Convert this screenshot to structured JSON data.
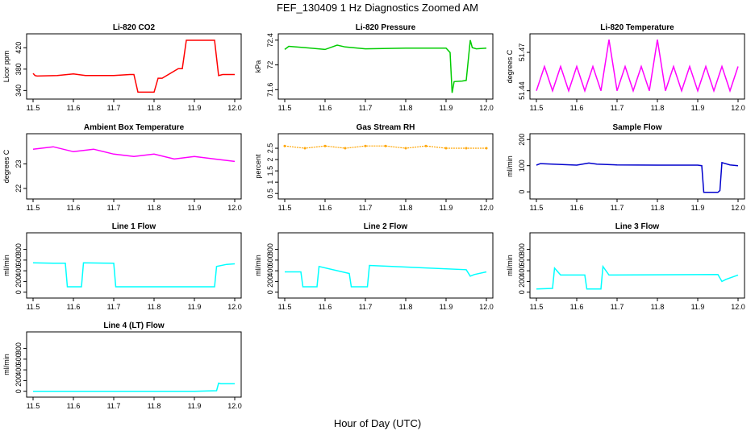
{
  "title": "FEF_130409 1 Hz Diagnostics Zoomed AM",
  "xlabel": "Hour of Day (UTC)",
  "chart_data": [
    {
      "type": "line",
      "title": "Li-820 CO2",
      "ylabel": "Licor ppm",
      "color": "#ff0000",
      "xlim": [
        11.5,
        12.0
      ],
      "ylim": [
        330,
        440
      ],
      "xticks": [
        "11.5",
        "11.6",
        "11.7",
        "11.8",
        "11.9",
        "12.0"
      ],
      "yticks": [
        340,
        380,
        420
      ],
      "series": [
        {
          "x": [
            11.5,
            11.505,
            11.51,
            11.56,
            11.6,
            11.63,
            11.7,
            11.74,
            11.75,
            11.76,
            11.8,
            11.81,
            11.82,
            11.86,
            11.87,
            11.88,
            11.95,
            11.96,
            11.97,
            12.0
          ],
          "y": [
            372,
            368,
            367,
            368,
            371,
            368,
            368,
            370,
            370,
            337,
            337,
            363,
            363,
            381,
            381,
            434,
            434,
            368,
            370,
            370
          ]
        }
      ]
    },
    {
      "type": "line",
      "title": "Li-820 Pressure",
      "ylabel": "kPa",
      "color": "#00cc00",
      "xlim": [
        11.5,
        12.0
      ],
      "ylim": [
        71.5,
        72.45
      ],
      "xticks": [
        "11.5",
        "11.6",
        "11.7",
        "11.8",
        "11.9",
        "12.0"
      ],
      "yticks": [
        71.6,
        72.0,
        72.4
      ],
      "series": [
        {
          "x": [
            11.5,
            11.51,
            11.55,
            11.6,
            11.63,
            11.65,
            11.7,
            11.8,
            11.9,
            11.91,
            11.915,
            11.92,
            11.94,
            11.95,
            11.96,
            11.965,
            11.975,
            12.0
          ],
          "y": [
            72.25,
            72.3,
            72.28,
            72.25,
            72.32,
            72.29,
            72.26,
            72.27,
            72.27,
            72.2,
            71.55,
            71.73,
            71.74,
            71.75,
            72.4,
            72.28,
            72.26,
            72.27
          ]
        }
      ]
    },
    {
      "type": "line",
      "title": "Li-820 Temperature",
      "ylabel": "degrees C",
      "color": "#ff00ff",
      "xlim": [
        11.5,
        12.0
      ],
      "ylim": [
        51.436,
        51.482
      ],
      "xticks": [
        "11.5",
        "11.6",
        "11.7",
        "11.8",
        "11.9",
        "12.0"
      ],
      "yticks": [
        51.44,
        51.47
      ],
      "series": [
        {
          "x": [
            11.5,
            11.52,
            11.54,
            11.56,
            11.58,
            11.6,
            11.62,
            11.64,
            11.66,
            11.68,
            11.7,
            11.72,
            11.74,
            11.76,
            11.78,
            11.8,
            11.82,
            11.84,
            11.86,
            11.88,
            11.9,
            11.92,
            11.94,
            11.96,
            11.98,
            12.0
          ],
          "y": [
            51.44,
            51.459,
            51.44,
            51.459,
            51.44,
            51.459,
            51.44,
            51.459,
            51.44,
            51.48,
            51.44,
            51.459,
            51.44,
            51.459,
            51.44,
            51.48,
            51.44,
            51.459,
            51.44,
            51.459,
            51.44,
            51.459,
            51.44,
            51.459,
            51.44,
            51.459
          ]
        }
      ]
    },
    {
      "type": "line",
      "title": "Ambient Box Temperature",
      "ylabel": "degrees C",
      "color": "#ff00ff",
      "xlim": [
        11.5,
        12.0
      ],
      "ylim": [
        21.7,
        24.1
      ],
      "xticks": [
        "11.5",
        "11.6",
        "11.7",
        "11.8",
        "11.9",
        "12.0"
      ],
      "yticks": [
        22.0,
        23.0
      ],
      "series": [
        {
          "x": [
            11.5,
            11.55,
            11.6,
            11.65,
            11.7,
            11.75,
            11.8,
            11.85,
            11.9,
            11.95,
            12.0
          ],
          "y": [
            23.6,
            23.7,
            23.5,
            23.6,
            23.4,
            23.3,
            23.4,
            23.2,
            23.3,
            23.2,
            23.1
          ]
        }
      ]
    },
    {
      "type": "scatter",
      "title": "Gas Stream RH",
      "ylabel": "percent",
      "color": "#ffa500",
      "xlim": [
        11.5,
        12.0
      ],
      "ylim": [
        0.4,
        3.0
      ],
      "xticks": [
        "11.5",
        "11.6",
        "11.7",
        "11.8",
        "11.9",
        "12.0"
      ],
      "yticks": [
        0.5,
        1.0,
        1.5,
        2.0,
        2.5
      ],
      "series": [
        {
          "x": [
            11.5,
            11.55,
            11.6,
            11.65,
            11.7,
            11.75,
            11.8,
            11.85,
            11.9,
            11.95,
            12.0
          ],
          "y": [
            2.6,
            2.5,
            2.6,
            2.5,
            2.6,
            2.6,
            2.5,
            2.6,
            2.5,
            2.5,
            2.5
          ]
        }
      ]
    },
    {
      "type": "line",
      "title": "Sample Flow",
      "ylabel": "ml/min",
      "color": "#0000cc",
      "xlim": [
        11.5,
        12.0
      ],
      "ylim": [
        -15,
        210
      ],
      "xticks": [
        "11.5",
        "11.6",
        "11.7",
        "11.8",
        "11.9",
        "12.0"
      ],
      "yticks": [
        0,
        100,
        200
      ],
      "series": [
        {
          "x": [
            11.5,
            11.51,
            11.6,
            11.63,
            11.65,
            11.7,
            11.8,
            11.9,
            11.91,
            11.915,
            11.95,
            11.955,
            11.96,
            11.98,
            12.0
          ],
          "y": [
            102,
            108,
            102,
            110,
            106,
            103,
            102,
            102,
            100,
            -2,
            -2,
            5,
            112,
            103,
            100
          ]
        }
      ]
    },
    {
      "type": "line",
      "title": "Line 1 Flow",
      "ylabel": "ml/min",
      "color": "#00ffff",
      "xlim": [
        11.5,
        12.0
      ],
      "ylim": [
        -50,
        1050
      ],
      "xticks": [
        "11.5",
        "11.6",
        "11.7",
        "11.8",
        "11.9",
        "12.0"
      ],
      "yticks": [
        0,
        200,
        400,
        600,
        800
      ],
      "series": [
        {
          "x": [
            11.5,
            11.55,
            11.58,
            11.585,
            11.62,
            11.625,
            11.7,
            11.705,
            11.95,
            11.955,
            11.98,
            12.0
          ],
          "y": [
            550,
            540,
            540,
            100,
            100,
            550,
            540,
            100,
            100,
            480,
            520,
            530
          ]
        }
      ]
    },
    {
      "type": "line",
      "title": "Line 2 Flow",
      "ylabel": "ml/min",
      "color": "#00ffff",
      "xlim": [
        11.5,
        12.0
      ],
      "ylim": [
        -50,
        1050
      ],
      "xticks": [
        "11.5",
        "11.6",
        "11.7",
        "11.8",
        "11.9",
        "12.0"
      ],
      "yticks": [
        0,
        200,
        400,
        600,
        800
      ],
      "series": [
        {
          "x": [
            11.5,
            11.54,
            11.545,
            11.58,
            11.585,
            11.66,
            11.665,
            11.705,
            11.71,
            11.95,
            11.96,
            11.97,
            12.0
          ],
          "y": [
            380,
            380,
            100,
            100,
            480,
            350,
            100,
            100,
            500,
            420,
            300,
            330,
            380
          ]
        }
      ]
    },
    {
      "type": "line",
      "title": "Line 3 Flow",
      "ylabel": "ml/min",
      "color": "#00ffff",
      "xlim": [
        11.5,
        12.0
      ],
      "ylim": [
        -50,
        1050
      ],
      "xticks": [
        "11.5",
        "11.6",
        "11.7",
        "11.8",
        "11.9",
        "12.0"
      ],
      "yticks": [
        0,
        200,
        400,
        600,
        800
      ],
      "series": [
        {
          "x": [
            11.5,
            11.54,
            11.545,
            11.56,
            11.62,
            11.625,
            11.66,
            11.665,
            11.68,
            11.95,
            11.96,
            11.97,
            12.0
          ],
          "y": [
            60,
            70,
            450,
            320,
            320,
            60,
            60,
            480,
            320,
            330,
            200,
            240,
            320
          ]
        }
      ]
    },
    {
      "type": "line",
      "title": "Line 4 (LT) Flow",
      "ylabel": "ml/min",
      "color": "#00ffff",
      "xlim": [
        11.5,
        12.0
      ],
      "ylim": [
        -50,
        1050
      ],
      "xticks": [
        "11.5",
        "11.6",
        "11.7",
        "11.8",
        "11.9",
        "12.0"
      ],
      "yticks": [
        0,
        200,
        400,
        600,
        800
      ],
      "series": [
        {
          "x": [
            11.5,
            11.6,
            11.7,
            11.8,
            11.9,
            11.955,
            11.96,
            11.965,
            12.0
          ],
          "y": [
            0,
            0,
            0,
            0,
            0,
            10,
            150,
            140,
            140
          ]
        }
      ]
    }
  ]
}
